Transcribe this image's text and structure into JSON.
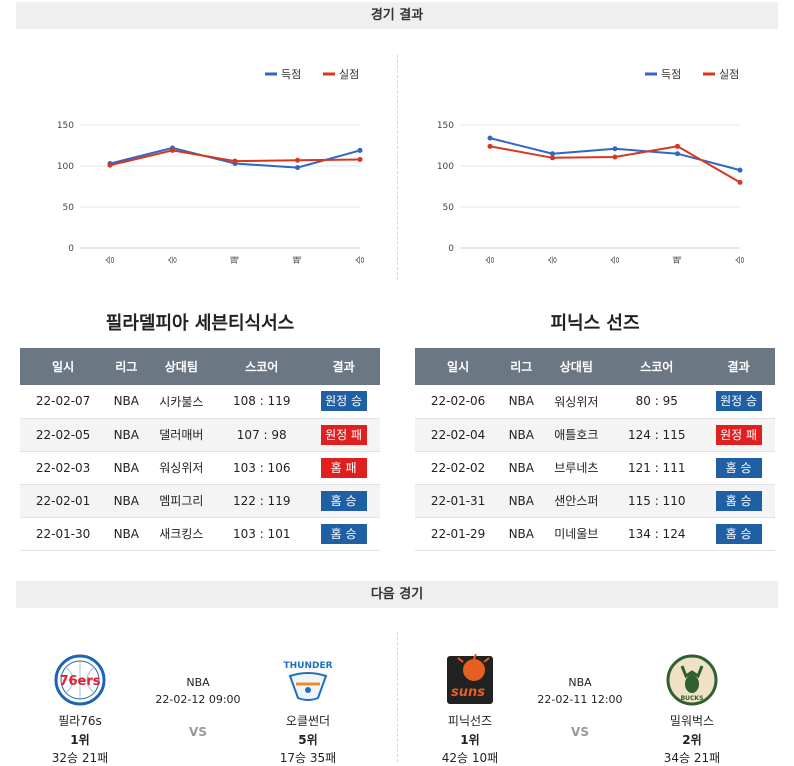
{
  "sections": {
    "results_title": "경기 결과",
    "next_title": "다음 경기"
  },
  "legend": {
    "scored": "득점",
    "conceded": "실점",
    "scored_color": "#3066c4",
    "conceded_color": "#d9351f"
  },
  "charts": [
    {
      "type": "line",
      "categories": [
        "승",
        "승",
        "패",
        "패",
        "승"
      ],
      "ylim": [
        0,
        150
      ],
      "yticks": [
        0,
        50,
        100,
        150
      ],
      "series": [
        {
          "name": "득점",
          "values": [
            103,
            122,
            103,
            98,
            119
          ]
        },
        {
          "name": "실점",
          "values": [
            101,
            119,
            106,
            107,
            108
          ]
        }
      ]
    },
    {
      "type": "line",
      "categories": [
        "승",
        "승",
        "승",
        "패",
        "승"
      ],
      "ylim": [
        0,
        150
      ],
      "yticks": [
        0,
        50,
        100,
        150
      ],
      "series": [
        {
          "name": "득점",
          "values": [
            134,
            115,
            121,
            115,
            95
          ]
        },
        {
          "name": "실점",
          "values": [
            124,
            110,
            111,
            124,
            80
          ]
        }
      ]
    }
  ],
  "teams": [
    {
      "title": "필라델피아 세븐티식서스",
      "headers": [
        "일시",
        "리그",
        "상대팀",
        "스코어",
        "결과"
      ],
      "rows": [
        {
          "date": "22-02-07",
          "league": "NBA",
          "opponent": "시카불스",
          "score": "108 : 119",
          "result": "원정 승",
          "win": true
        },
        {
          "date": "22-02-05",
          "league": "NBA",
          "opponent": "댈러매버",
          "score": "107 : 98",
          "result": "원정 패",
          "win": false
        },
        {
          "date": "22-02-03",
          "league": "NBA",
          "opponent": "워싱위저",
          "score": "103 : 106",
          "result": "홈 패",
          "win": false
        },
        {
          "date": "22-02-01",
          "league": "NBA",
          "opponent": "멤피그리",
          "score": "122 : 119",
          "result": "홈 승",
          "win": true
        },
        {
          "date": "22-01-30",
          "league": "NBA",
          "opponent": "새크킹스",
          "score": "103 : 101",
          "result": "홈 승",
          "win": true
        }
      ]
    },
    {
      "title": "피닉스 선즈",
      "headers": [
        "일시",
        "리그",
        "상대팀",
        "스코어",
        "결과"
      ],
      "rows": [
        {
          "date": "22-02-06",
          "league": "NBA",
          "opponent": "워싱위저",
          "score": "80 : 95",
          "result": "원정 승",
          "win": true
        },
        {
          "date": "22-02-04",
          "league": "NBA",
          "opponent": "애틀호크",
          "score": "124 : 115",
          "result": "원정 패",
          "win": false
        },
        {
          "date": "22-02-02",
          "league": "NBA",
          "opponent": "브루네츠",
          "score": "121 : 111",
          "result": "홈 승",
          "win": true
        },
        {
          "date": "22-01-31",
          "league": "NBA",
          "opponent": "샌안스퍼",
          "score": "115 : 110",
          "result": "홈 승",
          "win": true
        },
        {
          "date": "22-01-29",
          "league": "NBA",
          "opponent": "미네울브",
          "score": "134 : 124",
          "result": "홈 승",
          "win": true
        }
      ]
    }
  ],
  "next_matches": [
    {
      "league": "NBA",
      "time": "22-02-12 09:00",
      "vs": "VS",
      "home": {
        "name": "필라76s",
        "rank": "1위",
        "record": "32승 21패",
        "logo": "76ers-logo",
        "logo_text": "76ers",
        "color": "#1d64b3"
      },
      "away": {
        "name": "오클썬더",
        "rank": "5위",
        "record": "17승 35패",
        "logo": "thunder-logo",
        "logo_text": "THUNDER",
        "color": "#1f6fc0"
      }
    },
    {
      "league": "NBA",
      "time": "22-02-11 12:00",
      "vs": "VS",
      "home": {
        "name": "피닉선즈",
        "rank": "1위",
        "record": "42승 10패",
        "logo": "suns-logo",
        "logo_text": "suns",
        "color": "#e56020"
      },
      "away": {
        "name": "밀워벅스",
        "rank": "2위",
        "record": "34승 21패",
        "logo": "bucks-logo",
        "logo_text": "BUCKS",
        "color": "#2f5f2f"
      }
    }
  ]
}
